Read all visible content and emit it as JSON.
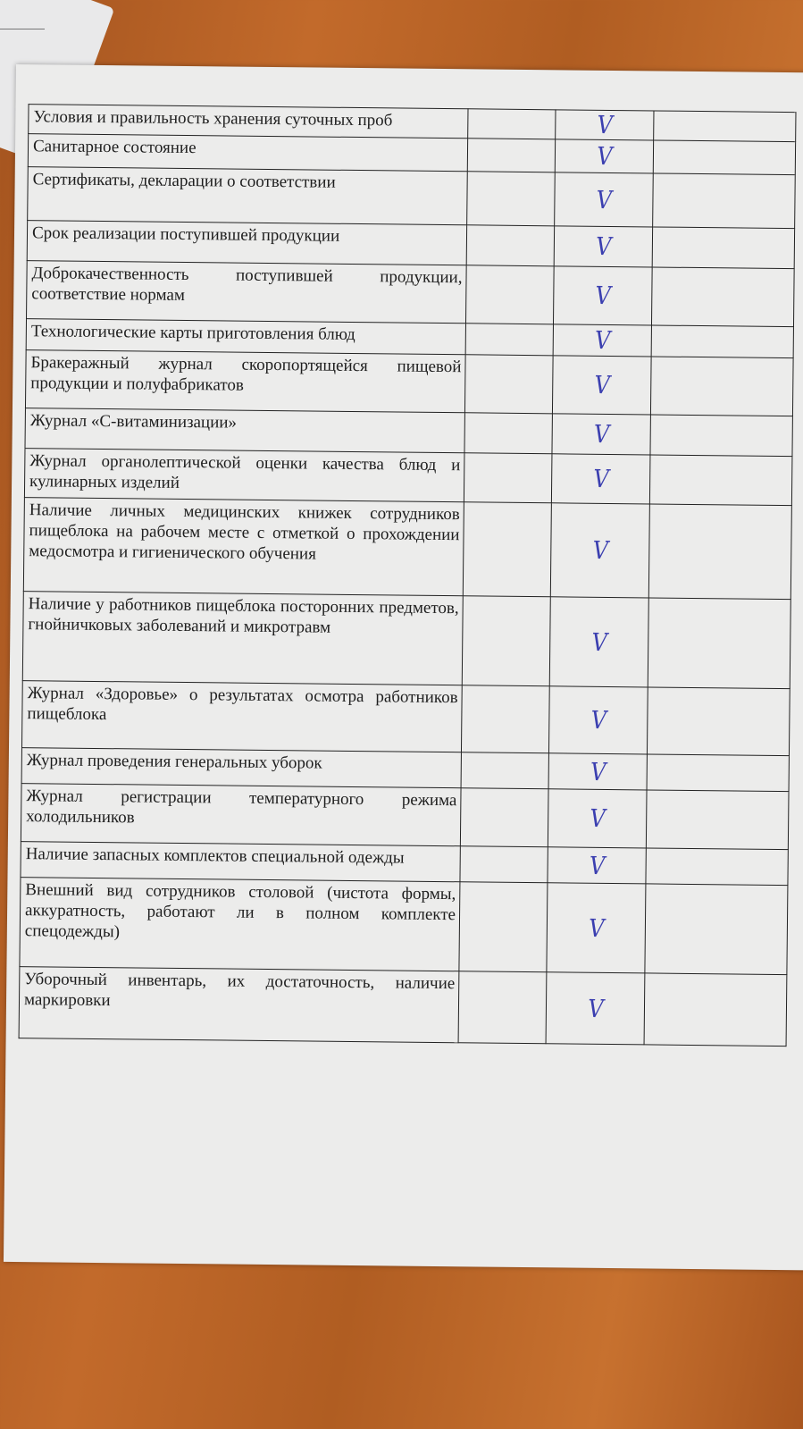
{
  "rows": [
    {
      "text": "Условия и правильность хранения суточных проб",
      "mark": "V",
      "h": 28
    },
    {
      "text": "Санитарное состояние",
      "mark": "V",
      "h": 37
    },
    {
      "text": "Сертификаты, декларации о соответствии",
      "mark": "V",
      "h": 60
    },
    {
      "text": "Срок реализации поступившей продукции",
      "mark": "V",
      "h": 45
    },
    {
      "text": "Доброкачественность поступившей продукции, соответствие нормам",
      "mark": "V",
      "h": 65
    },
    {
      "text": "Технологические карты приготовления блюд",
      "mark": "V",
      "h": 35
    },
    {
      "text": "Бракеражный журнал скоропортящейся пищевой продукции и полуфабрикатов",
      "mark": "V",
      "h": 65
    },
    {
      "text": "Журнал «С-витаминизации»",
      "mark": "V",
      "h": 45
    },
    {
      "text": "Журнал органолептической оценки качества блюд и кулинарных изделий",
      "mark": "V",
      "h": 55
    },
    {
      "text": "Наличие личных медицинских книжек сотрудников пищеблока на рабочем месте с отметкой о прохождении медосмотра и гигиенического обучения",
      "mark": "V",
      "h": 105
    },
    {
      "text": "Наличие у работников пищеблока посторонних предметов, гнойничковых заболеваний и микротравм",
      "mark": "V",
      "h": 100
    },
    {
      "text": "Журнал «Здоровье» о результатах осмотра работников пищеблока",
      "mark": "V",
      "h": 75
    },
    {
      "text": "Журнал проведения генеральных уборок",
      "mark": "V",
      "h": 40
    },
    {
      "text": "Журнал регистрации температурного режима холодильников",
      "mark": "V",
      "h": 65
    },
    {
      "text": "Наличие запасных комплектов специальной одежды",
      "mark": "V",
      "h": 40
    },
    {
      "text": "Внешний вид сотрудников столовой (чистота формы, аккуратность, работают ли в полном комплекте спецодежды)",
      "mark": "V",
      "h": 100
    },
    {
      "text": "Уборочный инвентарь, их достаточность, наличие маркировки",
      "mark": "V",
      "h": 80
    }
  ],
  "colors": {
    "checkmark": "#3b3fb0",
    "background": "#b8622a",
    "paper": "#ececeb"
  }
}
